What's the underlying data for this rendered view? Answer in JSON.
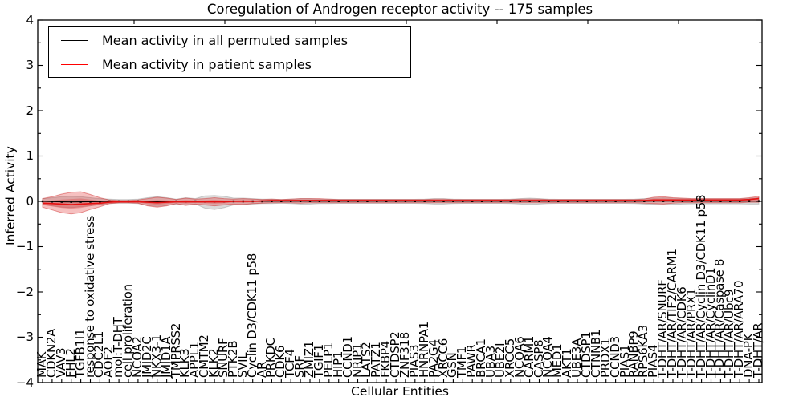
{
  "title": "Coregulation of Androgen receptor activity -- 175 samples",
  "legend": {
    "entries": [
      {
        "label": "Mean activity in all permuted samples",
        "color": "#000000"
      },
      {
        "label": "Mean activity in patient samples",
        "color": "#ff0000"
      }
    ]
  },
  "axes": {
    "ylabel": "Inferred Activity",
    "xlabel": "Cellular Entities",
    "ytick_labels": [
      "4",
      "3",
      "2",
      "1",
      "0",
      "−1",
      "−2",
      "−3",
      "−4"
    ],
    "ytick_values": [
      4,
      3,
      2,
      1,
      0,
      -1,
      -2,
      -3,
      -4
    ],
    "yminor_values": [
      3.5,
      2.5,
      1.5,
      0.5,
      -0.5,
      -1.5,
      -2.5,
      -3.5
    ],
    "ylim": [
      -4,
      4
    ]
  },
  "colors": {
    "patient_line": "#e51212",
    "patient_band_fill": "rgba(225,45,45,0.30)",
    "patient_band_edge": "rgba(205,35,35,0.45)",
    "permuted_line": "#000000",
    "permuted_band_fill": "rgba(125,125,125,0.28)",
    "permuted_band_edge": "rgba(110,110,110,0.30)",
    "frame": "#000000"
  },
  "chart_data": {
    "type": "line",
    "title": "Coregulation of Androgen receptor activity -- 175 samples",
    "xlabel": "Cellular Entities",
    "ylabel": "Inferred Activity",
    "ylim": [
      -4,
      4
    ],
    "n_samples": 175,
    "grid": false,
    "legend_position": "upper left",
    "categories": [
      "MAK",
      "CDKN2A",
      "VAV3",
      "FHL2",
      "TGFB1I1",
      "response to oxidative stress",
      "CDC2L1",
      "AOF2",
      "mol:T-DHT",
      "cell proliferation",
      "NCOA2",
      "JMJD2C",
      "NKX3-1",
      "JMJD1A",
      "TMPRSS2",
      "KLK3",
      "APPL1",
      "CMTM2",
      "KLK2",
      "SNURF",
      "PTK2B",
      "SVIL",
      "Cyclin D3/CDK11 p58",
      "AR",
      "PRKDC",
      "CDK6",
      "TCF4",
      "SRF",
      "ZMIZ1",
      "TGIF1",
      "PELP1",
      "HIP1",
      "CCND1",
      "NRIP1",
      "LATS2",
      "PATZ1",
      "FKBP4",
      "CTDSP2",
      "ZNF318",
      "PIAS3",
      "HNRNPA1",
      "PA2G4",
      "XRCC6",
      "GSN",
      "TMF1",
      "PAWR",
      "BRCA1",
      "UBA3",
      "UBE2I",
      "XRCC5",
      "NCOA6",
      "CARM1",
      "CASP8",
      "NCOA4",
      "MED1",
      "AKT1",
      "UBE3A",
      "CTDSP1",
      "CTNNB1",
      "PRDX1",
      "CCND3",
      "PIAS1",
      "RANBP9",
      "RPS6KA3",
      "PIAS4",
      "T-DHT/AR/SNURF",
      "T-DHT/AR/TIF2/CARM1",
      "T-DHT/AR/CDK6",
      "T-DHT/AR/PRX1",
      "T-DHT/AR/Cyclin D3/CDK11 p58",
      "T-DHT/AR/CyclinD1",
      "T-DHT/AR/Caspase 8",
      "T-DHT/AR/Ubc9",
      "T-DHT/AR/ARA70",
      "DNA-PK",
      "T-DHT/AR"
    ],
    "series": [
      {
        "name": "Mean activity in all permuted samples",
        "color": "#000000",
        "values": [
          0,
          -0.005,
          -0.01,
          -0.012,
          -0.01,
          -0.008,
          -0.005,
          0,
          0,
          0,
          0,
          -0.005,
          -0.008,
          -0.005,
          0,
          -0.003,
          0,
          -0.004,
          -0.006,
          -0.004,
          0,
          0,
          0,
          0,
          0.003,
          0.003,
          0.003,
          0.004,
          0.004,
          0.003,
          0.003,
          0.003,
          0.003,
          0.003,
          0.003,
          0.003,
          0.003,
          0.003,
          0.003,
          0.003,
          0.003,
          0.003,
          0.003,
          0.003,
          0.003,
          0.003,
          0.003,
          0.003,
          0.003,
          0.003,
          0.003,
          0.003,
          0.003,
          0.003,
          0.003,
          0.003,
          0.003,
          0.003,
          0.003,
          0.003,
          0.003,
          0.003,
          0.003,
          0.004,
          0.005,
          0.005,
          0.005,
          0.004,
          0.004,
          0.004,
          0.004,
          0.004,
          0.004,
          0.004,
          0.005,
          0.006
        ]
      },
      {
        "name": "Mean activity in patient samples",
        "color": "#ff0000",
        "values": [
          -0.04,
          -0.05,
          -0.06,
          -0.07,
          -0.06,
          -0.05,
          -0.04,
          -0.02,
          -0.01,
          -0.01,
          -0.01,
          -0.02,
          -0.03,
          -0.02,
          -0.01,
          -0.01,
          -0.01,
          -0.01,
          -0.01,
          -0.01,
          0,
          0,
          0,
          0.01,
          0.02,
          0.02,
          0.02,
          0.02,
          0.02,
          0.02,
          0.02,
          0.02,
          0.02,
          0.02,
          0.02,
          0.02,
          0.02,
          0.02,
          0.02,
          0.02,
          0.02,
          0.02,
          0.02,
          0.02,
          0.02,
          0.02,
          0.02,
          0.02,
          0.02,
          0.02,
          0.02,
          0.02,
          0.02,
          0.02,
          0.02,
          0.02,
          0.02,
          0.02,
          0.02,
          0.02,
          0.02,
          0.02,
          0.02,
          0.02,
          0.03,
          0.03,
          0.03,
          0.03,
          0.03,
          0.03,
          0.03,
          0.03,
          0.03,
          0.03,
          0.04,
          0.06
        ]
      }
    ],
    "bands": [
      {
        "name": "permuted samples range",
        "upper": [
          0.06,
          0.08,
          0.1,
          0.11,
          0.1,
          0.08,
          0.06,
          0.05,
          0.04,
          0.04,
          0.05,
          0.08,
          0.1,
          0.08,
          0.05,
          0.08,
          0.06,
          0.12,
          0.13,
          0.11,
          0.07,
          0.07,
          0.06,
          0.05,
          0.05,
          0.04,
          0.05,
          0.06,
          0.06,
          0.05,
          0.05,
          0.045,
          0.045,
          0.045,
          0.045,
          0.045,
          0.045,
          0.045,
          0.045,
          0.045,
          0.05,
          0.06,
          0.06,
          0.05,
          0.045,
          0.045,
          0.045,
          0.045,
          0.045,
          0.05,
          0.06,
          0.07,
          0.06,
          0.05,
          0.045,
          0.045,
          0.045,
          0.045,
          0.045,
          0.045,
          0.045,
          0.045,
          0.05,
          0.06,
          0.07,
          0.08,
          0.07,
          0.06,
          0.055,
          0.055,
          0.055,
          0.055,
          0.055,
          0.055,
          0.07,
          0.08
        ],
        "lower": [
          -0.07,
          -0.1,
          -0.13,
          -0.14,
          -0.12,
          -0.1,
          -0.07,
          -0.05,
          -0.04,
          -0.04,
          -0.05,
          -0.09,
          -0.11,
          -0.09,
          -0.06,
          -0.08,
          -0.06,
          -0.15,
          -0.18,
          -0.14,
          -0.08,
          -0.07,
          -0.06,
          -0.05,
          -0.05,
          -0.04,
          -0.05,
          -0.06,
          -0.06,
          -0.05,
          -0.05,
          -0.045,
          -0.045,
          -0.045,
          -0.045,
          -0.045,
          -0.045,
          -0.045,
          -0.045,
          -0.045,
          -0.05,
          -0.06,
          -0.06,
          -0.05,
          -0.045,
          -0.045,
          -0.045,
          -0.045,
          -0.045,
          -0.05,
          -0.06,
          -0.07,
          -0.06,
          -0.05,
          -0.045,
          -0.045,
          -0.045,
          -0.045,
          -0.045,
          -0.045,
          -0.045,
          -0.045,
          -0.05,
          -0.06,
          -0.07,
          -0.08,
          -0.07,
          -0.06,
          -0.055,
          -0.055,
          -0.055,
          -0.055,
          -0.055,
          -0.055,
          -0.06,
          -0.06
        ]
      },
      {
        "name": "patient samples range",
        "upper": [
          0.06,
          0.1,
          0.16,
          0.2,
          0.21,
          0.15,
          0.08,
          0.03,
          0.02,
          0.02,
          0.03,
          0.06,
          0.09,
          0.07,
          0.04,
          0.07,
          0.05,
          0.06,
          0.08,
          0.06,
          0.05,
          0.06,
          0.05,
          0.04,
          0.05,
          0.04,
          0.05,
          0.06,
          0.06,
          0.06,
          0.05,
          0.04,
          0.04,
          0.04,
          0.04,
          0.04,
          0.04,
          0.04,
          0.04,
          0.04,
          0.04,
          0.05,
          0.05,
          0.04,
          0.04,
          0.04,
          0.04,
          0.04,
          0.04,
          0.04,
          0.05,
          0.05,
          0.05,
          0.04,
          0.04,
          0.04,
          0.04,
          0.04,
          0.04,
          0.04,
          0.04,
          0.04,
          0.04,
          0.05,
          0.09,
          0.1,
          0.08,
          0.07,
          0.06,
          0.06,
          0.06,
          0.06,
          0.06,
          0.06,
          0.08,
          0.11
        ],
        "lower": [
          -0.13,
          -0.19,
          -0.25,
          -0.28,
          -0.25,
          -0.18,
          -0.12,
          -0.05,
          -0.03,
          -0.03,
          -0.04,
          -0.1,
          -0.13,
          -0.1,
          -0.05,
          -0.09,
          -0.06,
          -0.08,
          -0.1,
          -0.08,
          -0.06,
          -0.07,
          -0.05,
          -0.04,
          -0.03,
          -0.03,
          -0.03,
          -0.04,
          -0.03,
          -0.03,
          -0.03,
          -0.03,
          -0.03,
          -0.03,
          -0.03,
          -0.03,
          -0.03,
          -0.03,
          -0.03,
          -0.03,
          -0.03,
          -0.03,
          -0.03,
          -0.03,
          -0.03,
          -0.03,
          -0.03,
          -0.03,
          -0.03,
          -0.03,
          -0.03,
          -0.03,
          -0.03,
          -0.03,
          -0.03,
          -0.03,
          -0.03,
          -0.03,
          -0.03,
          -0.03,
          -0.03,
          -0.03,
          -0.03,
          -0.04,
          -0.05,
          -0.06,
          -0.04,
          -0.03,
          -0.03,
          -0.03,
          -0.03,
          -0.03,
          -0.03,
          -0.03,
          -0.02,
          -0.02
        ]
      }
    ]
  }
}
